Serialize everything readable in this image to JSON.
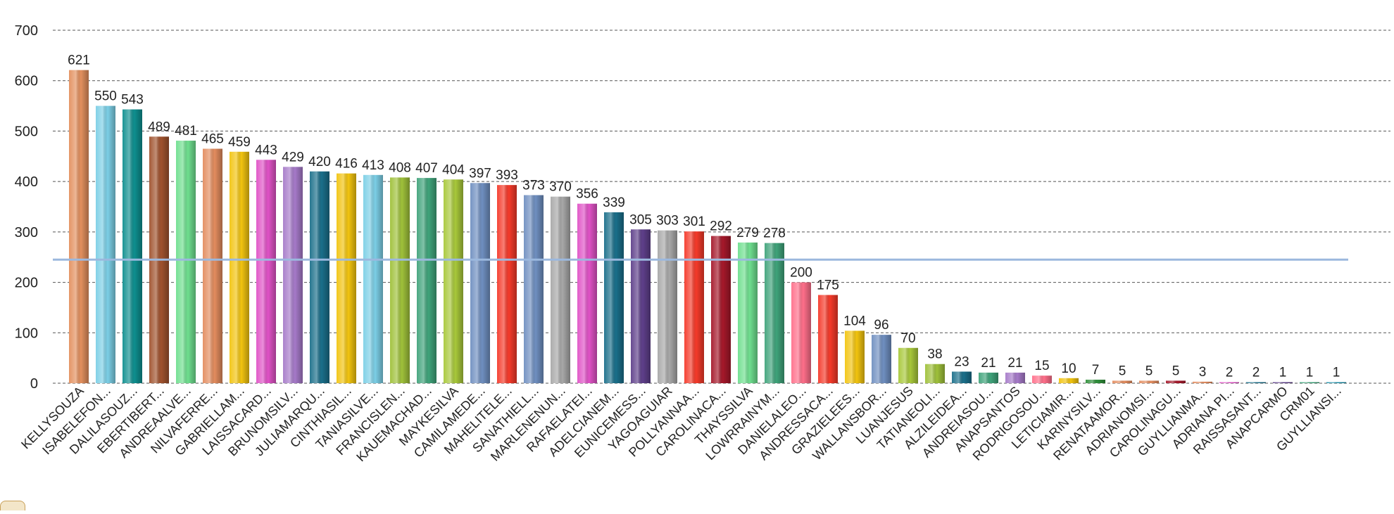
{
  "chart_data": {
    "type": "bar",
    "title": "",
    "xlabel": "",
    "ylabel": "",
    "ylim": [
      0,
      700
    ],
    "yticks": [
      0,
      100,
      200,
      300,
      400,
      500,
      600,
      700
    ],
    "grid": true,
    "legend": "none",
    "reference_line": 245,
    "reference_line_color": "#9bb8de",
    "grid_color": "#555555",
    "categories": [
      "KELLYSOUZA",
      "ISABELEFON...",
      "DALILASOUZ...",
      "EBERTIBERT...",
      "ANDREAALVE...",
      "NILVAFERRE...",
      "GABRIELLAM...",
      "LAISSACARD...",
      "BRUNOMSILV...",
      "JULIAMARQU...",
      "CINTHIASIL...",
      "TANIASILVE...",
      "FRANCISLEN...",
      "KAUEMACHAD...",
      "MAYKESILVA",
      "CAMILAMEDE...",
      "MAHELITELE...",
      "SANATHIELL...",
      "MARLENENUN...",
      "RAFAELATEI...",
      "ADELCIANEM...",
      "EUNICEMESS...",
      "YAGOAGUIAR",
      "POLLYANNAA...",
      "CAROLINACA...",
      "THAYSSILVA",
      "LOWRRAINYM...",
      "DANIELALEO...",
      "ANDRESSACA...",
      "GRAZIELEES...",
      "WALLANSBOR...",
      "LUANJESUS",
      "TATIANEOLI...",
      "ALZILEIDEA...",
      "ANDREIASOU...",
      "ANAPSANTOS",
      "RODRIGOSOU...",
      "LETICIAMIR...",
      "KARINYSILV...",
      "RENATAAMOR...",
      "ADRIANOMSI...",
      "CAROLINAGU...",
      "GUYLLIANMA...",
      "ADRIANA PI...",
      "RAISSASANT...",
      "ANAPCARMO",
      "CRM01",
      "GUYLLIANSI..."
    ],
    "values": [
      621,
      550,
      543,
      489,
      481,
      465,
      459,
      443,
      429,
      420,
      416,
      413,
      408,
      407,
      404,
      397,
      393,
      373,
      370,
      356,
      339,
      305,
      303,
      301,
      292,
      279,
      278,
      200,
      175,
      104,
      96,
      70,
      38,
      23,
      21,
      21,
      15,
      10,
      7,
      5,
      5,
      5,
      3,
      2,
      2,
      1,
      1,
      1
    ],
    "colors": [
      "#e3905e",
      "#7ccfe6",
      "#0e8f8f",
      "#a0522d",
      "#6fdf8f",
      "#e38c5e",
      "#f2c40f",
      "#e052c6",
      "#a67ac9",
      "#1a6f8a",
      "#f2c40f",
      "#7ccfe6",
      "#9fc13a",
      "#3fa37a",
      "#a8c83a",
      "#6f8fc0",
      "#f53a2a",
      "#6f8fc0",
      "#a8a8a8",
      "#e052c6",
      "#1a6f8a",
      "#5e3f8a",
      "#a8a8a8",
      "#f53a2a",
      "#a5182a",
      "#6fdf8f",
      "#3fa37a",
      "#ff6f8a",
      "#f53a2a",
      "#f2c40f",
      "#6f8fc0",
      "#a8c83a",
      "#9fc13a",
      "#1a6f8a",
      "#3fa37a",
      "#a67ac9",
      "#ff6f8a",
      "#f2c40f",
      "#2f8f3a",
      "#e38c5e",
      "#e38c5e",
      "#a5182a",
      "#e38c5e",
      "#e052c6",
      "#1a6f8a",
      "#5e3f8a",
      "#3fa37a",
      "#1a8fa8"
    ]
  }
}
